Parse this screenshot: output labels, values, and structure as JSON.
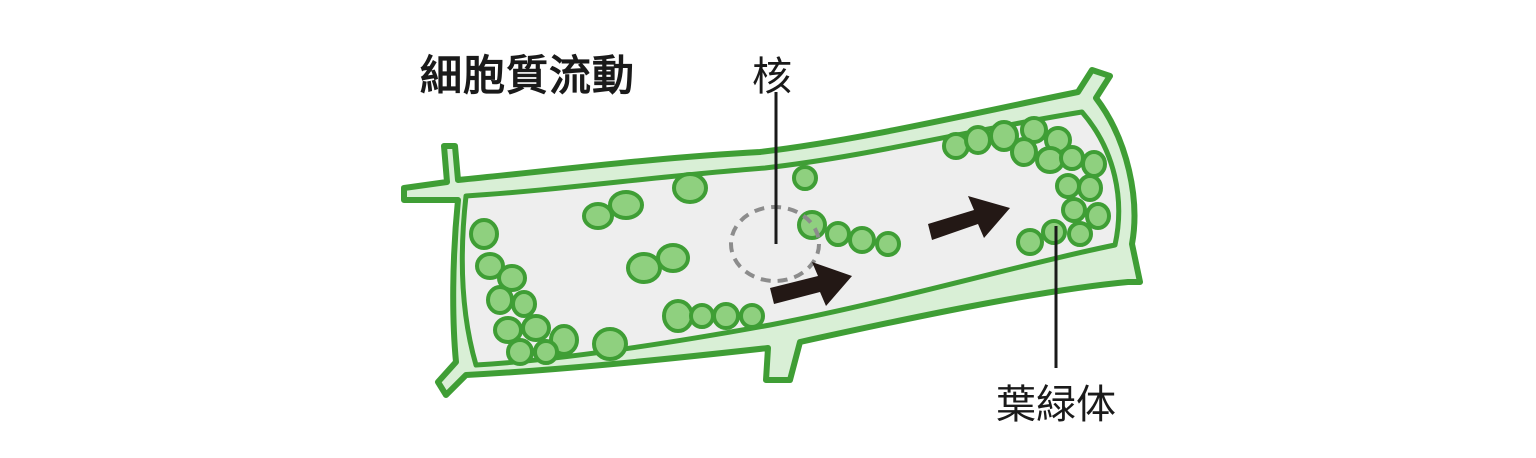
{
  "title": "細胞質流動",
  "labels": {
    "nucleus": "核",
    "chloroplast": "葉緑体"
  },
  "colors": {
    "wall_stroke": "#3f9e35",
    "wall_fill": "#d9efd6",
    "cytoplasm": "#eeeeee",
    "chloroplast_fill": "#8fd07f",
    "chloroplast_stroke": "#3f9e35",
    "nucleus_outline": "#8c8c8c",
    "arrow": "#231815",
    "leader_line": "#1a1a1a"
  }
}
